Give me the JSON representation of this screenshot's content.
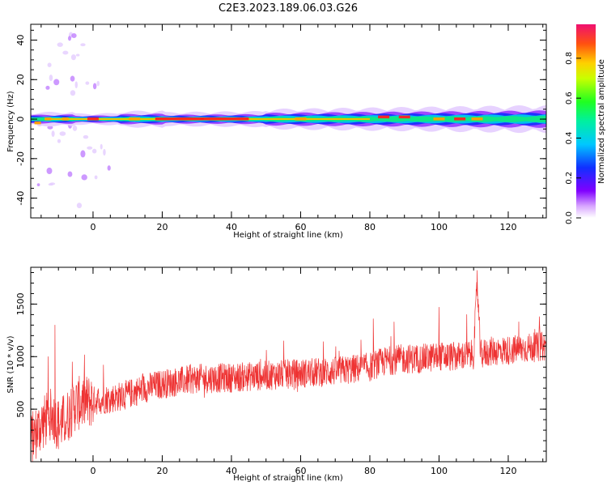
{
  "title": "C2E3.2023.189.06.03.G26",
  "chart_data": [
    {
      "type": "heatmap",
      "xlabel": "Height of straight line (km)",
      "ylabel": "Frequency (Hz)",
      "xlim": [
        -18,
        131
      ],
      "ylim": [
        -50,
        48
      ],
      "x_ticks": [
        "0",
        "20",
        "40",
        "60",
        "80",
        "100",
        "120"
      ],
      "y_ticks": [
        "-40",
        "-20",
        "0",
        "20",
        "40"
      ],
      "colorbar": {
        "label": "Normalized spectral amplitude",
        "ticks": [
          "0.0",
          "0.2",
          "0.4",
          "0.6",
          "0.8"
        ],
        "range": [
          0,
          0.97
        ]
      },
      "description_values": {
        "band_center_hz": 0,
        "band_halfwidth_hz_near": 3,
        "band_halfwidth_hz_far": 6
      },
      "peaks": [
        {
          "x": -16,
          "y": -2,
          "v": 0.9
        },
        {
          "x": -13,
          "y": 0,
          "v": 0.75
        },
        {
          "x": -8,
          "y": 0,
          "v": 0.8
        },
        {
          "x": 0,
          "y": 0,
          "v": 0.95
        },
        {
          "x": 12,
          "y": 0,
          "v": 0.9
        },
        {
          "x": 25,
          "y": 0,
          "v": 0.95
        },
        {
          "x": 38,
          "y": 0,
          "v": 0.95
        },
        {
          "x": 60,
          "y": 0,
          "v": 0.9
        },
        {
          "x": 84,
          "y": 1,
          "v": 0.95
        },
        {
          "x": 90,
          "y": 1,
          "v": 0.95
        },
        {
          "x": 100,
          "y": 0,
          "v": 0.9
        },
        {
          "x": 106,
          "y": 0,
          "v": 0.95
        },
        {
          "x": 111,
          "y": 0,
          "v": 0.9
        }
      ]
    },
    {
      "type": "line",
      "xlabel": "Height of straight line (km)",
      "ylabel": "SNR (10 * v/v)",
      "xlim": [
        -18,
        131
      ],
      "ylim": [
        0,
        1850
      ],
      "x_ticks": [
        "0",
        "20",
        "40",
        "60",
        "80",
        "100",
        "120"
      ],
      "y_ticks": [
        "500",
        "1000",
        "1500"
      ],
      "series": [
        {
          "color": "#ee3333",
          "trend_x": [
            -18,
            -15,
            -12,
            -10,
            -8,
            -5,
            0,
            5,
            10,
            15,
            20,
            30,
            40,
            50,
            60,
            70,
            75,
            80,
            82,
            85,
            90,
            95,
            100,
            105,
            110,
            111,
            112,
            115,
            120,
            125,
            131
          ],
          "trend_y": [
            200,
            350,
            450,
            350,
            400,
            550,
            580,
            600,
            640,
            700,
            740,
            790,
            800,
            820,
            840,
            860,
            880,
            900,
            930,
            960,
            980,
            980,
            1000,
            1000,
            1020,
            1700,
            1020,
            1050,
            1060,
            1080,
            1100
          ],
          "spikes": [
            {
              "x": -11,
              "y": 1300
            },
            {
              "x": -13,
              "y": 1000
            },
            {
              "x": -6,
              "y": 950
            },
            {
              "x": 3,
              "y": 920
            },
            {
              "x": 81,
              "y": 1360
            },
            {
              "x": 87,
              "y": 1330
            },
            {
              "x": 100,
              "y": 1470
            },
            {
              "x": 108,
              "y": 1400
            },
            {
              "x": 111,
              "y": 1820
            },
            {
              "x": 129,
              "y": 1380
            }
          ]
        }
      ]
    }
  ]
}
